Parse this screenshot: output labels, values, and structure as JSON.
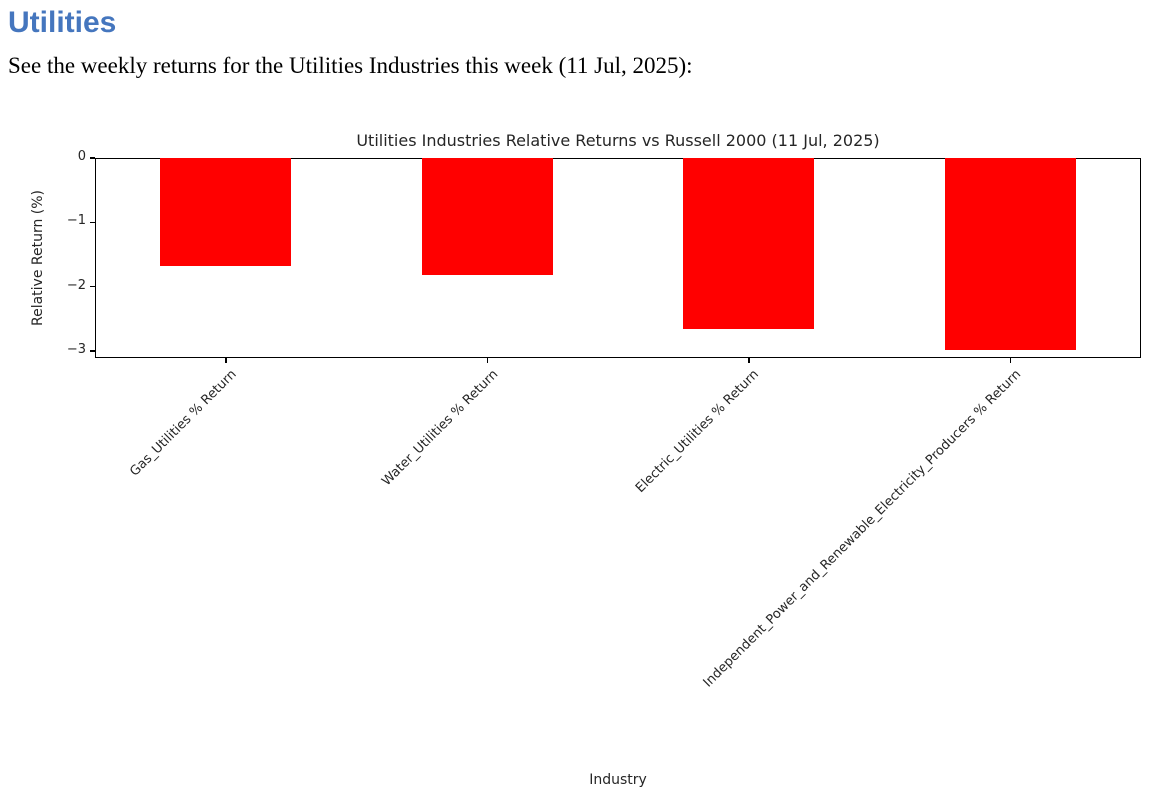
{
  "page": {
    "heading": "Utilities",
    "intro": "See the weekly returns for the Utilities Industries this week (11 Jul, 2025):"
  },
  "colors": {
    "heading_blue": "#4576be",
    "bar_red": "#ff0000",
    "axis_black": "#000000"
  },
  "chart_data": {
    "type": "bar",
    "title": "Utilities Industries Relative Returns vs Russell 2000 (11 Jul, 2025)",
    "xlabel": "Industry",
    "ylabel": "Relative Return (%)",
    "categories": [
      "Gas_Utilities % Return",
      "Water_Utilities % Return",
      "Electric_Utilities % Return",
      "Independent_Power_and_Renewable_Electricity_Producers % Return"
    ],
    "values": [
      -1.68,
      -1.82,
      -2.66,
      -2.98
    ],
    "bar_color": "#ff0000",
    "ylim": [
      -3.11,
      0
    ],
    "yticks": [
      0,
      -1,
      -2,
      -3
    ],
    "grid": false,
    "legend_position": "none",
    "xtick_rotation_deg": 45
  }
}
